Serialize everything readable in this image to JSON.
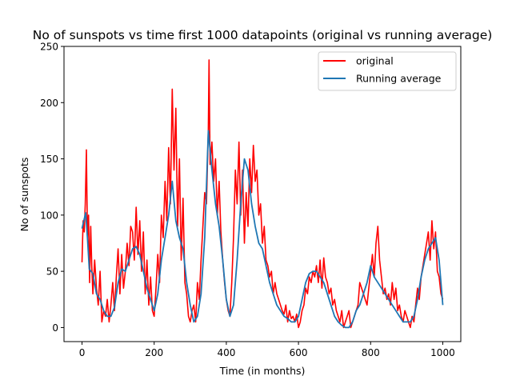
{
  "chart_data": {
    "type": "line",
    "title": "No of sunspots vs time first 1000 datapoints (original vs running average)",
    "xlabel": "Time (in months)",
    "ylabel": "No of sunspots",
    "xlim": [
      -50,
      1050
    ],
    "ylim": [
      -12.5,
      250
    ],
    "xticks": [
      0,
      200,
      400,
      600,
      800,
      1000
    ],
    "yticks": [
      0,
      50,
      100,
      150,
      200,
      250
    ],
    "grid": false,
    "legend_position": "top-right",
    "series": [
      {
        "name": "original",
        "color": "#ff0000",
        "x": [
          0,
          3,
          6,
          9,
          12,
          15,
          18,
          21,
          24,
          27,
          30,
          35,
          40,
          45,
          50,
          55,
          60,
          65,
          70,
          75,
          80,
          85,
          90,
          95,
          100,
          105,
          110,
          115,
          120,
          125,
          130,
          135,
          140,
          145,
          150,
          155,
          160,
          165,
          170,
          175,
          180,
          185,
          190,
          195,
          200,
          205,
          210,
          215,
          220,
          225,
          230,
          235,
          240,
          245,
          250,
          255,
          260,
          265,
          270,
          275,
          280,
          285,
          290,
          295,
          300,
          305,
          310,
          315,
          320,
          325,
          330,
          335,
          340,
          345,
          348,
          350,
          352,
          355,
          360,
          365,
          370,
          375,
          380,
          385,
          390,
          395,
          400,
          405,
          410,
          415,
          420,
          425,
          430,
          435,
          440,
          445,
          450,
          455,
          460,
          465,
          470,
          475,
          480,
          485,
          490,
          495,
          500,
          505,
          510,
          515,
          520,
          525,
          530,
          535,
          540,
          545,
          550,
          555,
          560,
          565,
          570,
          575,
          580,
          585,
          590,
          595,
          600,
          605,
          610,
          615,
          620,
          625,
          630,
          635,
          640,
          645,
          650,
          655,
          660,
          665,
          670,
          675,
          680,
          685,
          690,
          695,
          700,
          705,
          710,
          715,
          720,
          725,
          730,
          735,
          740,
          745,
          750,
          755,
          760,
          765,
          770,
          775,
          780,
          785,
          790,
          795,
          800,
          805,
          810,
          815,
          820,
          825,
          830,
          835,
          840,
          845,
          850,
          855,
          860,
          865,
          870,
          875,
          880,
          885,
          890,
          895,
          900,
          905,
          910,
          915,
          920,
          925,
          930,
          935,
          940,
          945,
          950,
          955,
          960,
          965,
          970,
          975,
          980,
          985,
          990,
          995,
          1000
        ],
        "values": [
          58,
          95,
          85,
          110,
          158,
          80,
          100,
          40,
          90,
          55,
          30,
          60,
          35,
          20,
          50,
          5,
          15,
          10,
          25,
          5,
          20,
          40,
          15,
          45,
          70,
          30,
          65,
          35,
          50,
          75,
          55,
          90,
          85,
          60,
          107,
          65,
          95,
          50,
          85,
          30,
          60,
          20,
          45,
          15,
          10,
          35,
          65,
          40,
          100,
          80,
          130,
          95,
          160,
          110,
          212,
          140,
          195,
          90,
          150,
          60,
          115,
          40,
          30,
          10,
          5,
          15,
          20,
          5,
          40,
          25,
          60,
          90,
          120,
          110,
          150,
          176,
          238,
          145,
          165,
          130,
          150,
          100,
          130,
          85,
          60,
          40,
          25,
          15,
          10,
          40,
          80,
          140,
          110,
          165,
          100,
          140,
          75,
          120,
          90,
          150,
          120,
          162,
          130,
          140,
          100,
          110,
          75,
          90,
          60,
          55,
          45,
          50,
          30,
          40,
          30,
          25,
          20,
          15,
          12,
          20,
          5,
          15,
          8,
          10,
          5,
          12,
          0,
          5,
          15,
          20,
          35,
          30,
          45,
          40,
          50,
          45,
          55,
          40,
          60,
          35,
          62,
          45,
          40,
          30,
          35,
          20,
          25,
          15,
          10,
          5,
          15,
          0,
          5,
          10,
          15,
          0,
          5,
          10,
          15,
          20,
          40,
          35,
          30,
          25,
          20,
          35,
          50,
          65,
          45,
          75,
          90,
          60,
          45,
          30,
          35,
          25,
          30,
          20,
          40,
          25,
          35,
          15,
          20,
          10,
          5,
          15,
          10,
          5,
          0,
          10,
          5,
          20,
          35,
          25,
          45,
          55,
          65,
          75,
          85,
          60,
          95,
          70,
          85,
          50,
          45,
          30,
          25
        ]
      },
      {
        "name": "Running average",
        "color": "#1f77b4",
        "x": [
          0,
          5,
          10,
          15,
          20,
          25,
          30,
          40,
          50,
          60,
          70,
          80,
          90,
          100,
          110,
          120,
          130,
          140,
          150,
          160,
          170,
          180,
          190,
          200,
          210,
          220,
          230,
          240,
          250,
          260,
          270,
          280,
          290,
          300,
          310,
          320,
          330,
          340,
          350,
          360,
          370,
          380,
          390,
          400,
          410,
          420,
          430,
          440,
          450,
          460,
          470,
          480,
          490,
          500,
          510,
          520,
          530,
          540,
          550,
          560,
          570,
          580,
          590,
          600,
          610,
          620,
          630,
          640,
          650,
          660,
          670,
          680,
          690,
          700,
          710,
          720,
          730,
          740,
          750,
          760,
          770,
          780,
          790,
          800,
          810,
          820,
          830,
          840,
          850,
          860,
          870,
          880,
          890,
          900,
          910,
          920,
          930,
          940,
          950,
          960,
          970,
          980,
          990,
          1000
        ],
        "values": [
          88,
          95,
          102,
          80,
          52,
          50,
          48,
          30,
          25,
          15,
          10,
          10,
          18,
          40,
          52,
          50,
          60,
          70,
          72,
          65,
          50,
          35,
          25,
          15,
          30,
          60,
          80,
          100,
          130,
          95,
          80,
          70,
          40,
          20,
          5,
          10,
          30,
          80,
          175,
          140,
          110,
          90,
          60,
          25,
          10,
          20,
          60,
          110,
          150,
          140,
          110,
          90,
          75,
          70,
          55,
          40,
          30,
          20,
          15,
          10,
          8,
          5,
          5,
          10,
          25,
          40,
          48,
          50,
          50,
          45,
          40,
          30,
          20,
          10,
          5,
          2,
          0,
          0,
          5,
          15,
          20,
          30,
          40,
          55,
          45,
          40,
          35,
          30,
          25,
          20,
          15,
          10,
          5,
          5,
          5,
          10,
          25,
          45,
          60,
          70,
          75,
          80,
          60,
          20
        ]
      }
    ]
  }
}
